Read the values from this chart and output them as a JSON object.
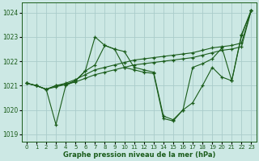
{
  "bg_color": "#cce8e4",
  "grid_color": "#aaccca",
  "line_color": "#1a5c1a",
  "title": "Graphe pression niveau de la mer (hPa)",
  "ylim": [
    1018.7,
    1024.4
  ],
  "xlim": [
    -0.5,
    23.5
  ],
  "yticks": [
    1019,
    1020,
    1021,
    1022,
    1023,
    1024
  ],
  "xticks": [
    0,
    1,
    2,
    3,
    4,
    5,
    6,
    7,
    8,
    9,
    10,
    11,
    12,
    13,
    14,
    15,
    16,
    17,
    18,
    19,
    20,
    21,
    22,
    23
  ],
  "lines": [
    {
      "x": [
        0,
        1,
        2,
        3,
        4,
        5,
        6,
        7,
        8,
        9,
        10,
        11,
        12,
        13,
        14,
        15,
        16,
        17,
        18,
        19,
        20,
        21,
        22,
        23
      ],
      "y": [
        1021.1,
        1021.0,
        1020.85,
        1020.95,
        1021.05,
        1021.15,
        1021.3,
        1021.45,
        1021.55,
        1021.65,
        1021.75,
        1021.85,
        1021.9,
        1021.95,
        1022.0,
        1022.05,
        1022.1,
        1022.15,
        1022.25,
        1022.35,
        1022.45,
        1022.5,
        1022.6,
        1024.1
      ]
    },
    {
      "x": [
        0,
        1,
        2,
        3,
        4,
        5,
        6,
        7,
        8,
        9,
        10,
        11,
        12,
        13,
        14,
        15,
        16,
        17,
        18,
        19,
        20,
        21,
        22,
        23
      ],
      "y": [
        1021.1,
        1021.0,
        1020.85,
        1021.0,
        1021.1,
        1021.25,
        1021.45,
        1021.65,
        1021.75,
        1021.85,
        1021.95,
        1022.05,
        1022.1,
        1022.15,
        1022.2,
        1022.25,
        1022.3,
        1022.35,
        1022.45,
        1022.55,
        1022.6,
        1022.65,
        1022.75,
        1024.1
      ]
    },
    {
      "x": [
        0,
        1,
        2,
        3,
        4,
        5,
        6,
        7,
        8,
        9,
        10,
        11,
        12,
        13,
        14,
        15,
        16,
        17,
        18,
        19,
        20,
        21,
        22,
        23
      ],
      "y": [
        1021.1,
        1021.0,
        1020.85,
        1021.0,
        1021.05,
        1021.2,
        1021.6,
        1023.0,
        1022.65,
        1022.5,
        1021.75,
        1021.65,
        1021.55,
        1021.5,
        1019.65,
        1019.55,
        1020.0,
        1021.75,
        1021.9,
        1022.1,
        1022.55,
        1021.2,
        1023.05,
        1024.1
      ]
    },
    {
      "x": [
        0,
        1,
        2,
        3,
        4,
        5,
        6,
        7,
        8,
        9,
        10,
        11,
        12,
        13,
        14,
        15,
        16,
        17,
        18,
        19,
        20,
        21,
        22,
        23
      ],
      "y": [
        1021.1,
        1021.0,
        1020.85,
        1019.4,
        1021.0,
        1021.2,
        1021.6,
        1021.85,
        1022.65,
        1022.5,
        1022.4,
        1021.75,
        1021.65,
        1021.55,
        1019.75,
        1019.6,
        1020.0,
        1020.3,
        1021.0,
        1021.75,
        1021.35,
        1021.2,
        1023.1,
        1024.1
      ]
    }
  ]
}
